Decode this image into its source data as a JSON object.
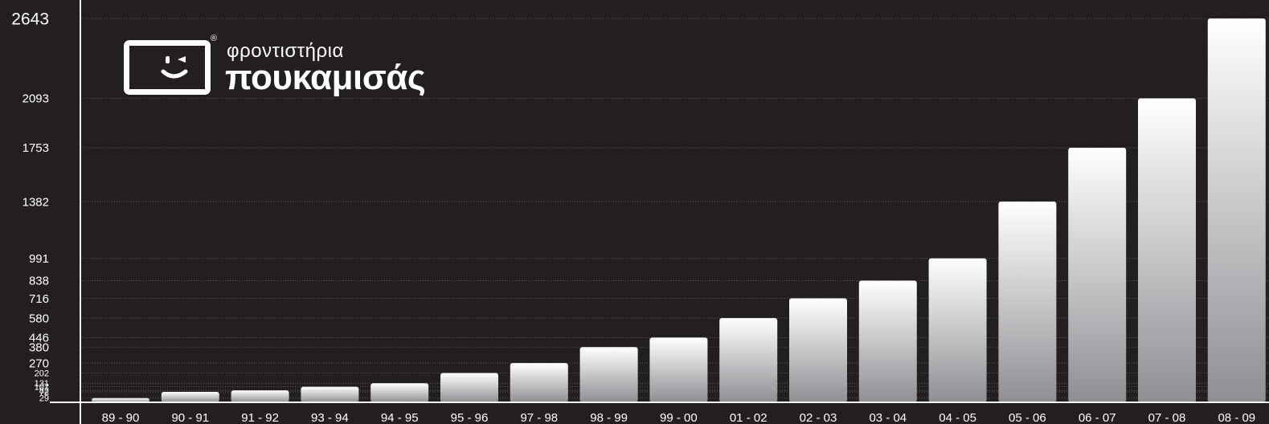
{
  "logo": {
    "registered": "®",
    "line1": "φροντιστήρια",
    "line2": "πουκαμισάς"
  },
  "chart_data": {
    "type": "bar",
    "categories": [
      "89 - 90",
      "90 - 91",
      "91 - 92",
      "93 - 94",
      "94 - 95",
      "95 - 96",
      "97 - 98",
      "98 - 99",
      "99 - 00",
      "01 - 02",
      "02 - 03",
      "03 - 04",
      "04 - 05",
      "05 - 06",
      "06 - 07",
      "07 - 08",
      "08 - 09"
    ],
    "values": [
      29,
      72,
      82,
      107,
      131,
      202,
      270,
      380,
      446,
      580,
      716,
      838,
      991,
      1382,
      1753,
      2093,
      2643
    ],
    "yticks": [
      2643,
      2093,
      1753,
      1382,
      991,
      838,
      716,
      580,
      446,
      380,
      270,
      202,
      131,
      107,
      82,
      72,
      29
    ],
    "grid": true,
    "colors": {
      "background": "#231f20",
      "bar_top": "#ffffff",
      "bar_bottom": "#8f8e93",
      "axis": "#ffffff",
      "grid": "#6b6869"
    }
  }
}
